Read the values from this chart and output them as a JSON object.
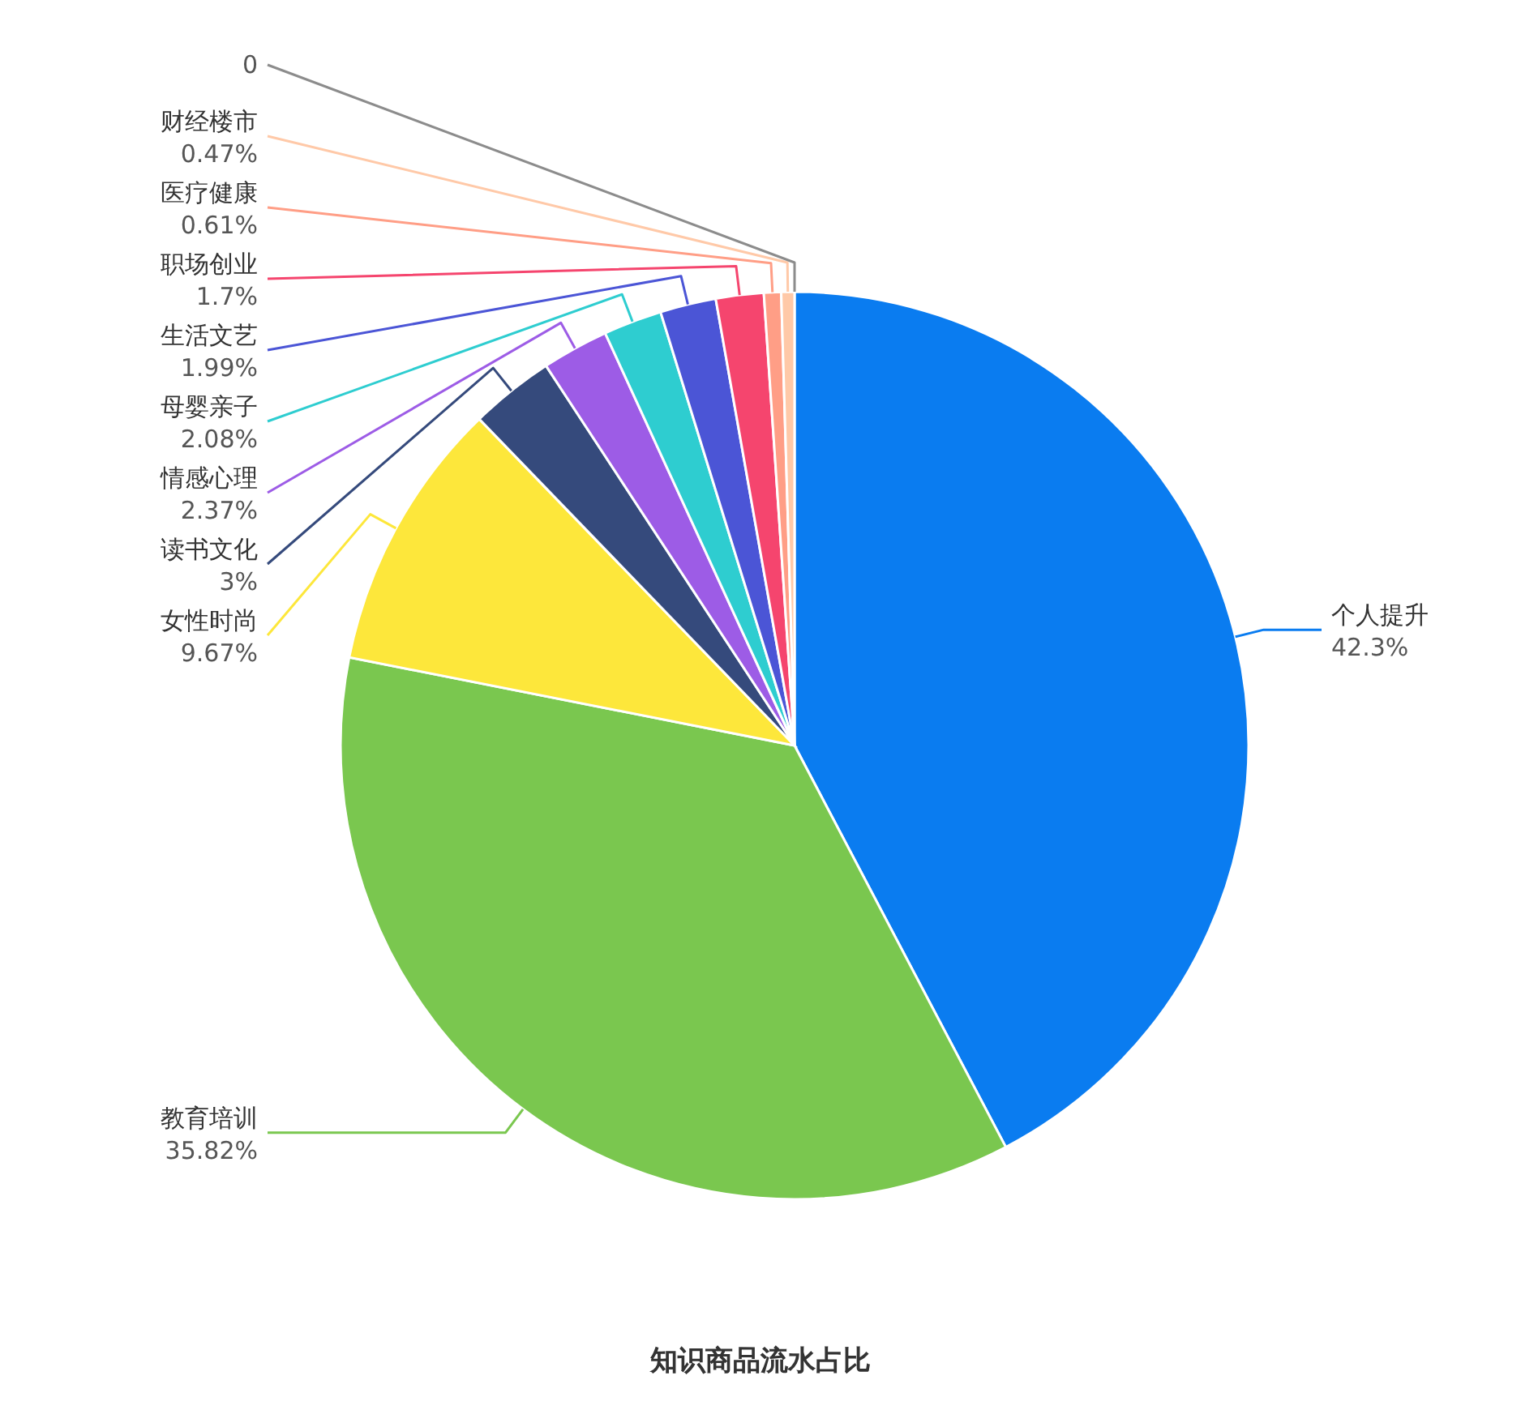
{
  "chart_data": {
    "type": "pie",
    "title": "知识商品流水占比",
    "categories": [
      "个人提升",
      "教育培训",
      "女性时尚",
      "读书文化",
      "情感心理",
      "母婴亲子",
      "生活文艺",
      "职场创业",
      "医疗健康",
      "财经楼市",
      null
    ],
    "values": [
      42.3,
      35.82,
      9.67,
      3,
      2.37,
      2.08,
      1.99,
      1.7,
      0.61,
      0.47,
      0
    ],
    "value_labels": [
      "42.3%",
      "35.82%",
      "9.67%",
      "3%",
      "2.37%",
      "2.08%",
      "1.99%",
      "1.7%",
      "0.61%",
      "0.47%",
      "0"
    ],
    "colors": [
      "#0a7cf0",
      "#7ac74f",
      "#fde73b",
      "#354a7c",
      "#9d5ce6",
      "#2ecdd0",
      "#4b55d6",
      "#f5456e",
      "#ff9e86",
      "#ffc9a8",
      "#8c8c8c"
    ]
  }
}
